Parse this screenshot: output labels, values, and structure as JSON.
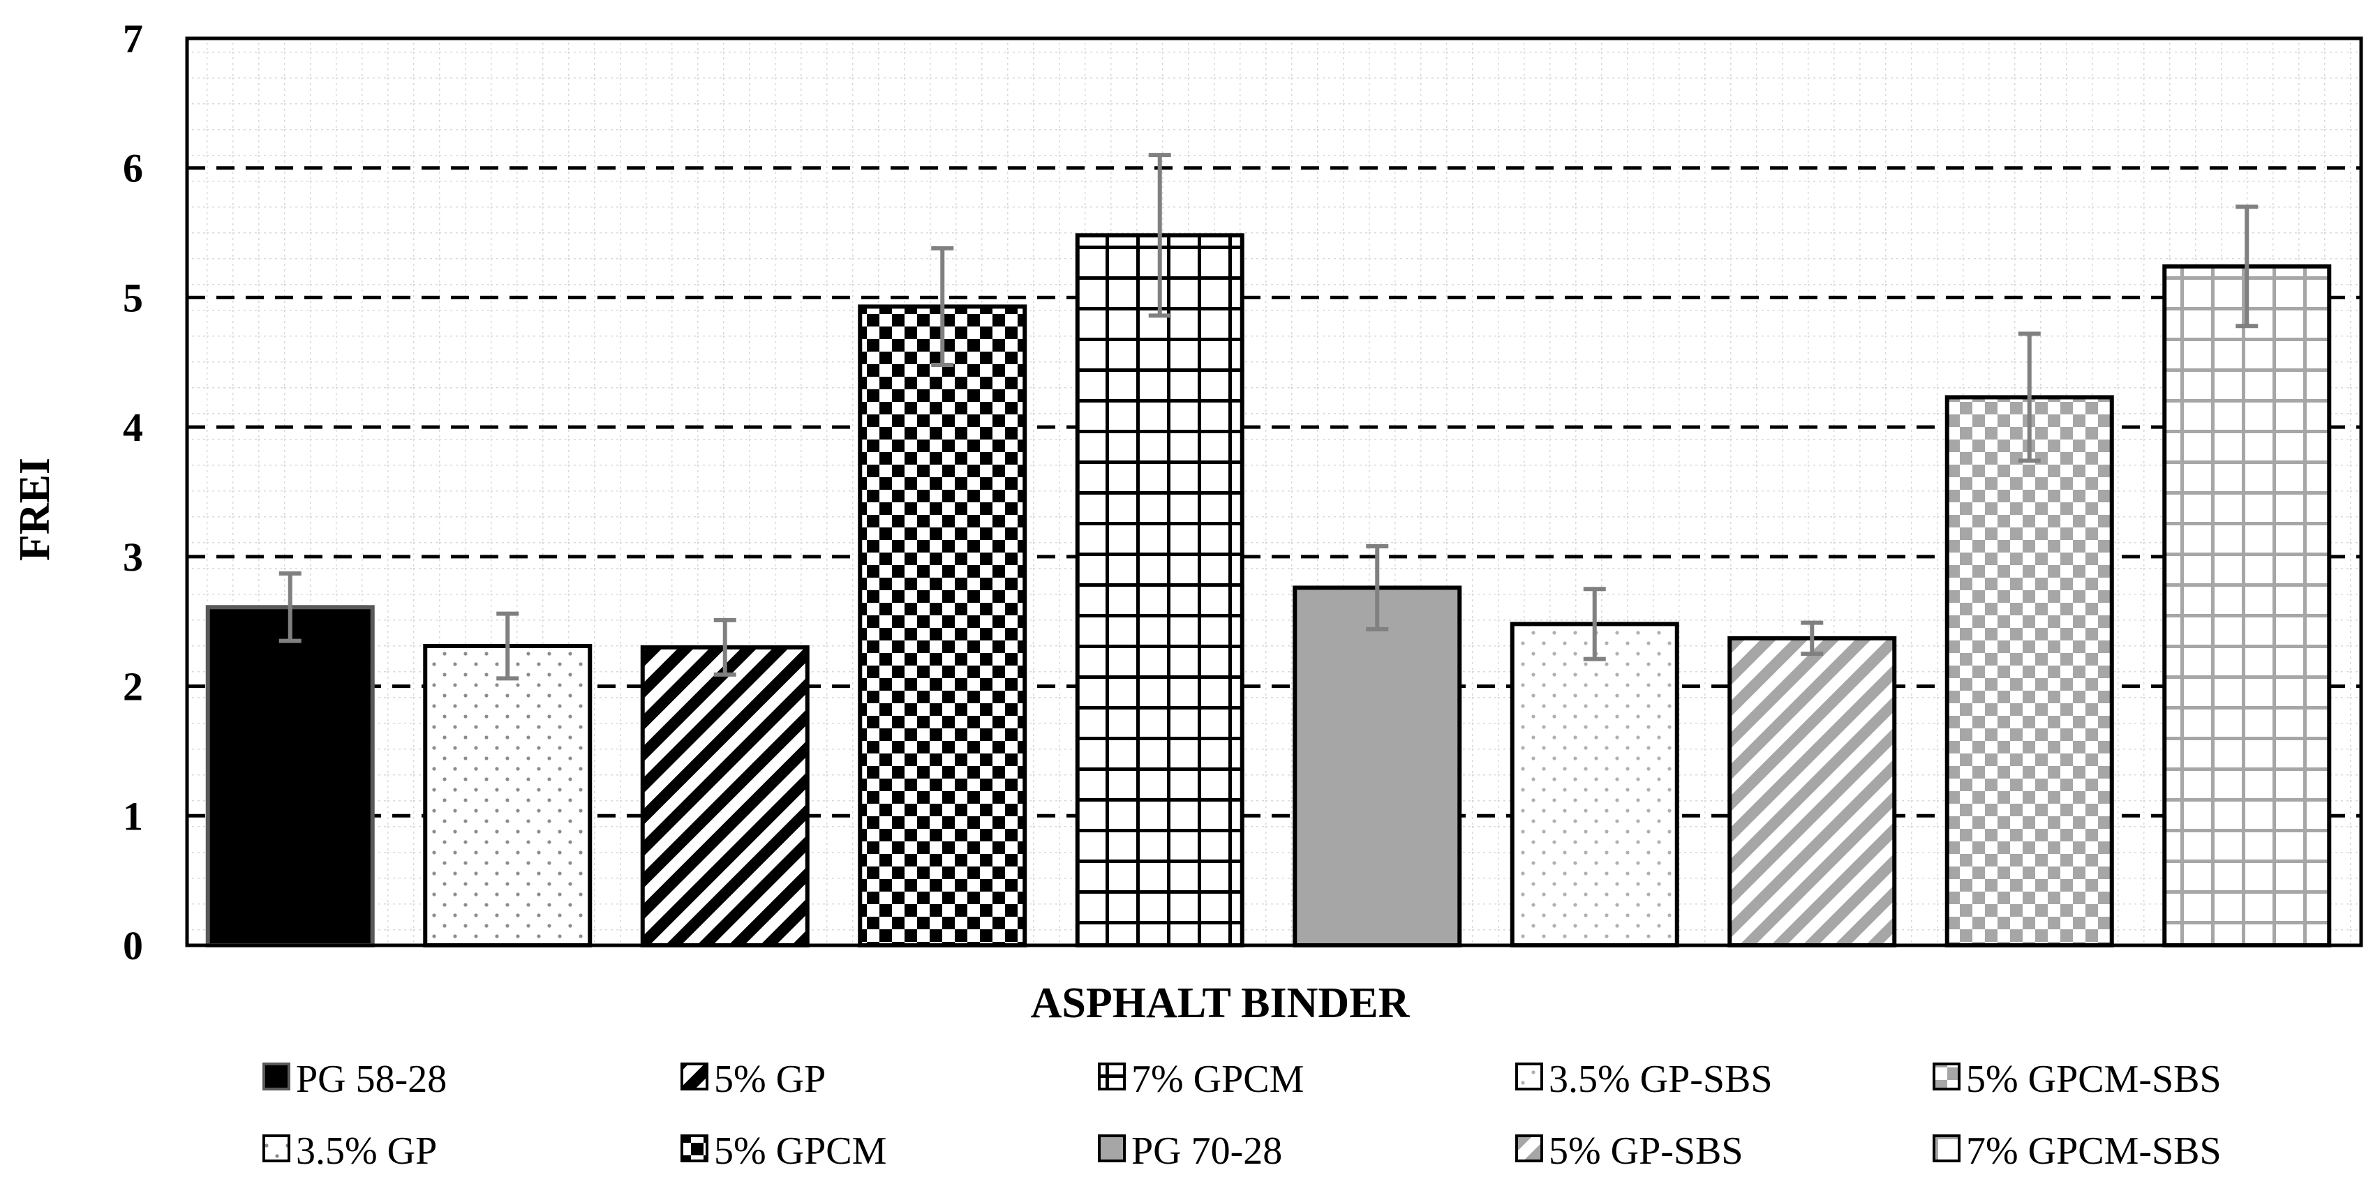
{
  "chart_data": {
    "type": "bar",
    "title": "",
    "xlabel": "ASPHALT BINDER",
    "ylabel": "FREI",
    "ylim": [
      0,
      7
    ],
    "yticks": [
      "0",
      "1",
      "2",
      "3",
      "4",
      "5",
      "6",
      "7"
    ],
    "grid": true,
    "legend_position": "bottom",
    "series": [
      {
        "name": "PG 58-28",
        "value": 2.61,
        "error": 0.26,
        "pattern": "solid-black"
      },
      {
        "name": "3.5% GP",
        "value": 2.31,
        "error": 0.25,
        "pattern": "dots"
      },
      {
        "name": "5% GP",
        "value": 2.3,
        "error": 0.21,
        "pattern": "diagonal-black"
      },
      {
        "name": "5% GPCM",
        "value": 4.93,
        "error": 0.45,
        "pattern": "checker-black"
      },
      {
        "name": "7% GPCM",
        "value": 5.48,
        "error": 0.62,
        "pattern": "grid-black"
      },
      {
        "name": "PG 70-28",
        "value": 2.76,
        "error": 0.32,
        "pattern": "solid-gray"
      },
      {
        "name": "3.5% GP-SBS",
        "value": 2.48,
        "error": 0.27,
        "pattern": "dots-gray"
      },
      {
        "name": "5% GP-SBS",
        "value": 2.37,
        "error": 0.12,
        "pattern": "diagonal-gray"
      },
      {
        "name": "5% GPCM-SBS",
        "value": 4.23,
        "error": 0.49,
        "pattern": "checker-gray"
      },
      {
        "name": "7% GPCM-SBS",
        "value": 5.24,
        "error": 0.46,
        "pattern": "grid-gray"
      }
    ]
  },
  "colors": {
    "black": "#000000",
    "gray_fill": "#a6a6a6",
    "pattern_gray": "#a0a0a0",
    "error_bar": "#808080",
    "minor_grid": "#d9d9d9"
  }
}
